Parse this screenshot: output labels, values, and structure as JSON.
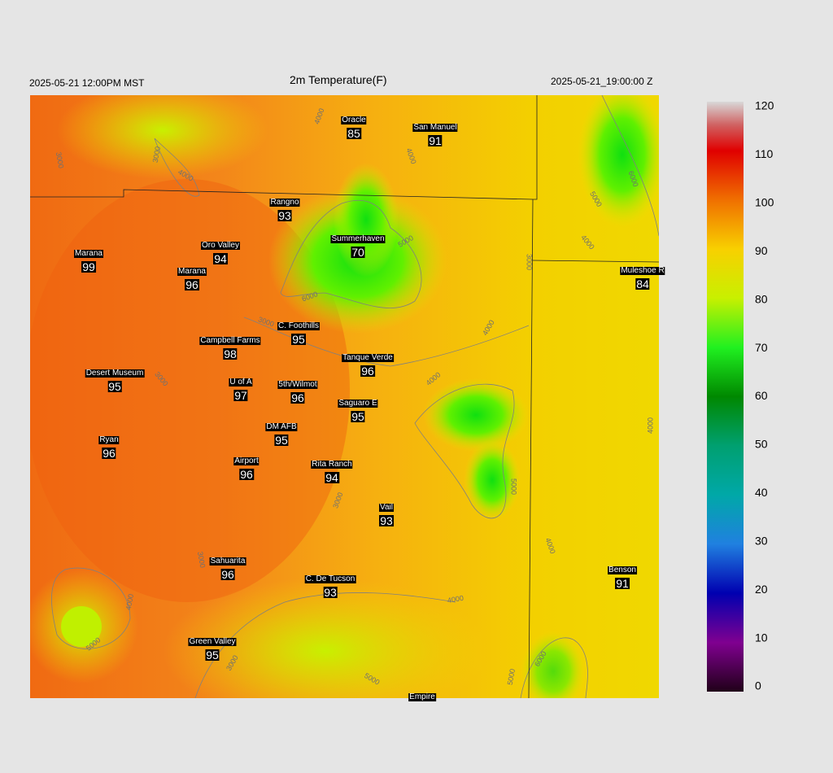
{
  "header": {
    "left": "2025-05-21 12:00PM MST",
    "title": "2m Temperature(F)",
    "right": "2025-05-21_19:00:00 Z"
  },
  "stations": [
    {
      "name": "Oracle",
      "value": 85
    },
    {
      "name": "San Manuel",
      "value": 91
    },
    {
      "name": "Rangno",
      "value": 93
    },
    {
      "name": "Summerhaven",
      "value": 70
    },
    {
      "name": "Marana",
      "value": 99
    },
    {
      "name": "Oro Valley",
      "value": 94
    },
    {
      "name": "Marana",
      "value": 96
    },
    {
      "name": "Muleshoe R",
      "value": 84
    },
    {
      "name": "C. Foothills",
      "value": 95
    },
    {
      "name": "Campbell Farms",
      "value": 98
    },
    {
      "name": "Tanque Verde",
      "value": 96
    },
    {
      "name": "Desert Museum",
      "value": 95
    },
    {
      "name": "U of A",
      "value": 97
    },
    {
      "name": "5th/Wilmot",
      "value": 96
    },
    {
      "name": "Saguaro E",
      "value": 95
    },
    {
      "name": "DM AFB",
      "value": 95
    },
    {
      "name": "Ryan",
      "value": 96
    },
    {
      "name": "Airport",
      "value": 96
    },
    {
      "name": "Rita Ranch",
      "value": 94
    },
    {
      "name": "Vail",
      "value": 93
    },
    {
      "name": "Sahuarita",
      "value": 96
    },
    {
      "name": "C. De Tucson",
      "value": 93
    },
    {
      "name": "Benson",
      "value": 91
    },
    {
      "name": "Green Valley",
      "value": 95
    },
    {
      "name": "Empire"
    }
  ],
  "contour_labels": [
    "4000",
    "3000",
    "3000",
    "4000",
    "4000",
    "5000",
    "6000",
    "4000",
    "3000",
    "5000",
    "6000",
    "3000",
    "4000",
    "4000",
    "3000",
    "4000",
    "5000",
    "4000",
    "3000",
    "3000",
    "4000",
    "5000",
    "4000",
    "3000",
    "5000",
    "6000",
    "5000"
  ],
  "colorbar": {
    "ticks": [
      0,
      10,
      20,
      30,
      40,
      50,
      60,
      70,
      80,
      90,
      100,
      110,
      120
    ],
    "lim": [
      0,
      120
    ]
  }
}
